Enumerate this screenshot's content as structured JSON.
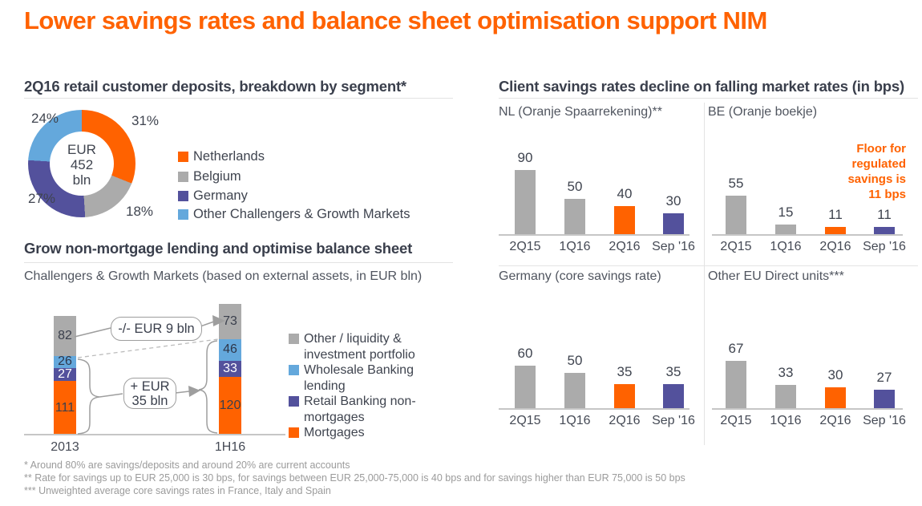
{
  "slide": {
    "title": "Lower savings rates and balance sheet optimisation support NIM"
  },
  "colors": {
    "accent_orange": "#ff6200",
    "gray": "#ababab",
    "purple": "#53519c",
    "light_blue": "#64a8dc",
    "dark_text": "#3a3f4c",
    "footnote_gray": "#9b9b9b"
  },
  "deposits": {
    "header": "2Q16 retail customer deposits, breakdown by segment*",
    "center": [
      "EUR",
      "452",
      "bln"
    ],
    "segments": [
      {
        "label": "Netherlands",
        "pct": "31%",
        "value": 31,
        "color": "#ff6200"
      },
      {
        "label": "Belgium",
        "pct": "18%",
        "value": 18,
        "color": "#ababab"
      },
      {
        "label": "Germany",
        "pct": "27%",
        "value": 27,
        "color": "#53519c"
      },
      {
        "label": "Other Challengers & Growth Markets",
        "pct": "24%",
        "value": 24,
        "color": "#64a8dc"
      }
    ]
  },
  "lending": {
    "header": "Grow non-mortgage lending and optimise balance sheet",
    "subtitle": "Challengers & Growth Markets (based on external assets, in EUR bln)",
    "categories": [
      "2013",
      "1H16"
    ],
    "series": [
      {
        "name": "Mortgages",
        "color": "#ff6200",
        "text_color": "#3a3f4c",
        "values": [
          111,
          120
        ]
      },
      {
        "name": "Retail Banking non-mortgages",
        "color": "#53519c",
        "text_color": "#ffffff",
        "values": [
          27,
          33
        ]
      },
      {
        "name": "Wholesale Banking lending",
        "color": "#64a8dc",
        "text_color": "#2e3649",
        "values": [
          26,
          46
        ]
      },
      {
        "name": "Other / liquidity & investment portfolio",
        "color": "#ababab",
        "text_color": "#3a3f4c",
        "values": [
          82,
          73
        ]
      }
    ],
    "legend_order": [
      3,
      2,
      1,
      0
    ],
    "annotations": [
      {
        "id": "minus",
        "lines": [
          "-/- EUR 9 bln"
        ]
      },
      {
        "id": "plus",
        "lines": [
          "+ EUR",
          "35 bln"
        ]
      }
    ]
  },
  "savings": {
    "header": "Client savings rates decline on falling market rates (in bps)",
    "categories": [
      "2Q15",
      "1Q16",
      "2Q16",
      "Sep '16"
    ],
    "bar_colors": [
      "#ababab",
      "#ababab",
      "#ff6200",
      "#53519c"
    ],
    "charts": [
      {
        "title": "NL (Oranje Spaarrekening)**",
        "values": [
          90,
          50,
          40,
          30
        ]
      },
      {
        "title": "BE (Oranje boekje)",
        "values": [
          55,
          15,
          11,
          11
        ],
        "note": "Floor for regulated savings is 11 bps"
      },
      {
        "title": "Germany (core savings rate)",
        "values": [
          60,
          50,
          35,
          35
        ]
      },
      {
        "title": "Other EU Direct units***",
        "values": [
          67,
          33,
          30,
          27
        ]
      }
    ]
  },
  "footnotes": [
    "* Around 80% are savings/deposits and around 20% are current accounts",
    "** Rate for savings up to EUR 25,000 is 30 bps, for savings between EUR 25,000-75,000 is 40 bps and for savings higher than EUR 75,000 is 50 bps",
    "*** Unweighted average core savings rates in France, Italy and Spain"
  ],
  "chart_data": [
    {
      "type": "pie",
      "subtype": "donut",
      "title": "2Q16 retail customer deposits, breakdown by segment*",
      "center_label": "EUR 452 bln",
      "labels": [
        "Netherlands",
        "Belgium",
        "Germany",
        "Other Challengers & Growth Markets"
      ],
      "values": [
        31,
        18,
        27,
        24
      ],
      "unit": "%",
      "legend_position": "right"
    },
    {
      "type": "bar",
      "subtype": "stacked",
      "title": "Grow non-mortgage lending and optimise balance sheet",
      "subtitle": "Challengers & Growth Markets (based on external assets, in EUR bln)",
      "categories": [
        "2013",
        "1H16"
      ],
      "series": [
        {
          "name": "Mortgages",
          "values": [
            111,
            120
          ]
        },
        {
          "name": "Retail Banking non-mortgages",
          "values": [
            27,
            33
          ]
        },
        {
          "name": "Wholesale Banking lending",
          "values": [
            26,
            46
          ]
        },
        {
          "name": "Other / liquidity & investment portfolio",
          "values": [
            82,
            73
          ]
        }
      ],
      "annotations": [
        "-/- EUR 9 bln",
        "+ EUR 35 bln"
      ],
      "legend_position": "right"
    },
    {
      "type": "bar",
      "title": "NL (Oranje Spaarrekening)**",
      "categories": [
        "2Q15",
        "1Q16",
        "2Q16",
        "Sep '16"
      ],
      "values": [
        90,
        50,
        40,
        30
      ],
      "ylabel": "bps"
    },
    {
      "type": "bar",
      "title": "BE (Oranje boekje)",
      "categories": [
        "2Q15",
        "1Q16",
        "2Q16",
        "Sep '16"
      ],
      "values": [
        55,
        15,
        11,
        11
      ],
      "ylabel": "bps",
      "annotation": "Floor for regulated savings is 11 bps"
    },
    {
      "type": "bar",
      "title": "Germany (core savings rate)",
      "categories": [
        "2Q15",
        "1Q16",
        "2Q16",
        "Sep '16"
      ],
      "values": [
        60,
        50,
        35,
        35
      ],
      "ylabel": "bps"
    },
    {
      "type": "bar",
      "title": "Other EU Direct units***",
      "categories": [
        "2Q15",
        "1Q16",
        "2Q16",
        "Sep '16"
      ],
      "values": [
        67,
        33,
        30,
        27
      ],
      "ylabel": "bps"
    }
  ]
}
